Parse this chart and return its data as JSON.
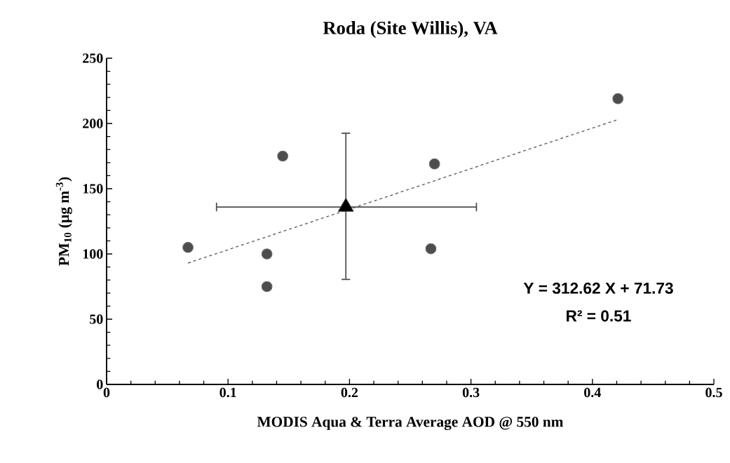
{
  "chart_data": {
    "type": "scatter",
    "title": "Roda (Site Willis), VA",
    "xlabel": "MODIS Aqua & Terra Average AOD @ 550 nm",
    "ylabel": "PM$_{10}$ (µg m$^{-3}$)",
    "series": [
      {
        "color": "#4d4d4d",
        "marker": "circle",
        "x": [
          0.067,
          0.132,
          0.132,
          0.145,
          0.27,
          0.267,
          0.421
        ],
        "values": [
          105,
          100,
          75,
          175,
          169,
          104,
          219
        ]
      },
      {
        "color": "#000000",
        "marker": "triangle",
        "x": [
          0.197
        ],
        "values": [
          136
        ],
        "errors": [
          [
            80,
            193
          ]
        ],
        "xerrors": [
          [
            0.09,
            0.305
          ]
        ]
      },
      {
        "type": "line",
        "color": "#595959",
        "marker": "none",
        "line_style": "dashed",
        "x": [
          0.067,
          0.421
        ],
        "values": [
          93,
          203
        ]
      }
    ],
    "xlim": [
      0,
      0.5
    ],
    "ylim": [
      0,
      250
    ],
    "xticks": [
      0,
      0.1,
      0.2,
      0.3,
      0.4,
      0.5
    ],
    "yticks": [
      0,
      50,
      100,
      150,
      200,
      250
    ],
    "grid": false,
    "annotations": [
      "Y = 312.62 X + 71.73",
      "R² = 0.51"
    ]
  }
}
